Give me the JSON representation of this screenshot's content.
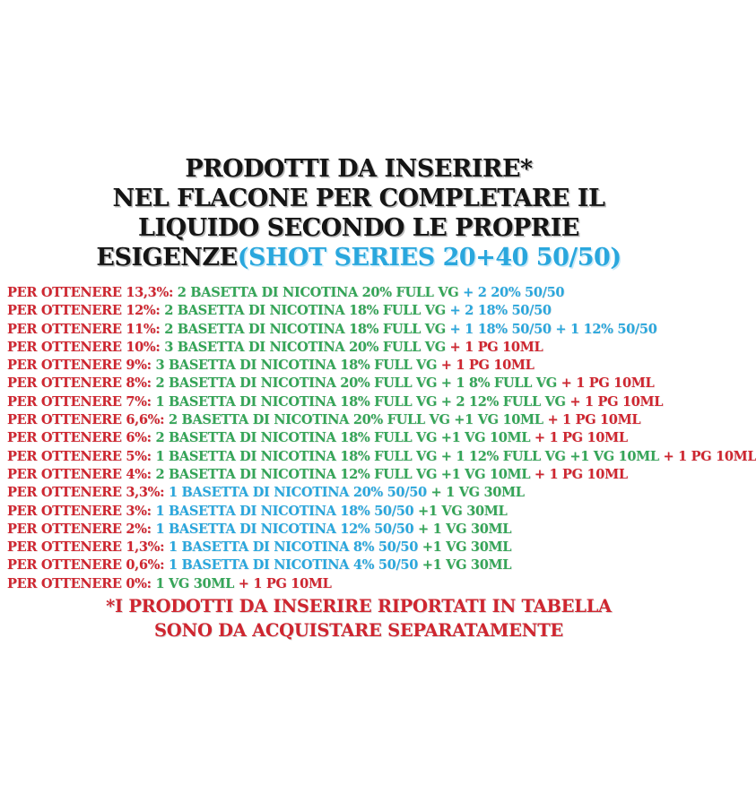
{
  "colors": {
    "red": "#cf2630",
    "green": "#35a558",
    "blue": "#2aa7dd",
    "black": "#151515"
  },
  "title": {
    "lines": [
      "PRODOTTI DA INSERIRE*",
      "NEL FLACONE PER COMPLETARE IL",
      "LIQUIDO SECONDO LE PROPRIE"
    ],
    "line4_black": "ESIGENZE",
    "line4_blue": "(SHOT SERIES 20+40 50/50)"
  },
  "list": {
    "rows": [
      {
        "segments": [
          {
            "text": "PER OTTENERE 13,3%: ",
            "color": "red"
          },
          {
            "text": "2 BASETTA DI NICOTINA 20% FULL VG",
            "color": "green"
          },
          {
            "text": " + 2 20% 50/50",
            "color": "blue"
          }
        ]
      },
      {
        "segments": [
          {
            "text": "PER OTTENERE 12%: ",
            "color": "red"
          },
          {
            "text": "2 BASETTA DI NICOTINA 18% FULL VG",
            "color": "green"
          },
          {
            "text": " + 2 18% 50/50",
            "color": "blue"
          }
        ]
      },
      {
        "segments": [
          {
            "text": "PER OTTENERE 11%: ",
            "color": "red"
          },
          {
            "text": "2 BASETTA DI NICOTINA 18% FULL VG",
            "color": "green"
          },
          {
            "text": " + 1 18% 50/50 + 1 12% 50/50",
            "color": "blue"
          }
        ]
      },
      {
        "segments": [
          {
            "text": "PER OTTENERE 10%: ",
            "color": "red"
          },
          {
            "text": "3 BASETTA DI NICOTINA 20% FULL VG",
            "color": "green"
          },
          {
            "text": " + 1 PG 10ML",
            "color": "red"
          }
        ]
      },
      {
        "segments": [
          {
            "text": "PER OTTENERE 9%: ",
            "color": "red"
          },
          {
            "text": "3 BASETTA DI NICOTINA 18% FULL VG",
            "color": "green"
          },
          {
            "text": " + 1 PG 10ML",
            "color": "red"
          }
        ]
      },
      {
        "segments": [
          {
            "text": "PER OTTENERE 8%: ",
            "color": "red"
          },
          {
            "text": "2 BASETTA DI NICOTINA 20% FULL VG + 1 8% FULL VG",
            "color": "green"
          },
          {
            "text": " + 1 PG 10ML",
            "color": "red"
          }
        ]
      },
      {
        "segments": [
          {
            "text": "PER OTTENERE 7%: ",
            "color": "red"
          },
          {
            "text": "1 BASETTA DI NICOTINA 18% FULL VG + 2 12% FULL VG",
            "color": "green"
          },
          {
            "text": " + 1 PG 10ML",
            "color": "red"
          }
        ]
      },
      {
        "segments": [
          {
            "text": "PER OTTENERE 6,6%: ",
            "color": "red"
          },
          {
            "text": "2 BASETTA DI NICOTINA 20% FULL VG +1 VG 10ML",
            "color": "green"
          },
          {
            "text": " + 1 PG 10ML",
            "color": "red"
          }
        ]
      },
      {
        "segments": [
          {
            "text": "PER OTTENERE 6%: ",
            "color": "red"
          },
          {
            "text": "2 BASETTA DI NICOTINA 18% FULL VG +1 VG 10ML",
            "color": "green"
          },
          {
            "text": " + 1 PG 10ML",
            "color": "red"
          }
        ]
      },
      {
        "segments": [
          {
            "text": "PER OTTENERE 5%: ",
            "color": "red"
          },
          {
            "text": "1 BASETTA DI NICOTINA 18% FULL VG + 1 12% FULL VG +1 VG 10ML",
            "color": "green"
          },
          {
            "text": " + 1 PG 10ML",
            "color": "red"
          }
        ]
      },
      {
        "segments": [
          {
            "text": "PER OTTENERE 4%: ",
            "color": "red"
          },
          {
            "text": "2 BASETTA DI NICOTINA 12% FULL VG +1 VG 10ML",
            "color": "green"
          },
          {
            "text": " + 1 PG 10ML",
            "color": "red"
          }
        ]
      },
      {
        "segments": [
          {
            "text": "PER OTTENERE 3,3%: ",
            "color": "red"
          },
          {
            "text": "1 BASETTA DI NICOTINA 20% 50/50",
            "color": "blue"
          },
          {
            "text": " + 1 VG 30ML",
            "color": "green"
          }
        ]
      },
      {
        "segments": [
          {
            "text": "PER OTTENERE 3%: ",
            "color": "red"
          },
          {
            "text": "1 BASETTA DI NICOTINA 18% 50/50",
            "color": "blue"
          },
          {
            "text": " +1 VG 30ML",
            "color": "green"
          }
        ]
      },
      {
        "segments": [
          {
            "text": "PER OTTENERE 2%: ",
            "color": "red"
          },
          {
            "text": "1 BASETTA DI NICOTINA 12% 50/50",
            "color": "blue"
          },
          {
            "text": " + 1 VG 30ML",
            "color": "green"
          }
        ]
      },
      {
        "segments": [
          {
            "text": "PER OTTENERE 1,3%: ",
            "color": "red"
          },
          {
            "text": "1 BASETTA DI NICOTINA 8% 50/50",
            "color": "blue"
          },
          {
            "text": " +1 VG 30ML",
            "color": "green"
          }
        ]
      },
      {
        "segments": [
          {
            "text": "PER OTTENERE 0,6%: ",
            "color": "red"
          },
          {
            "text": "1 BASETTA DI NICOTINA 4% 50/50",
            "color": "blue"
          },
          {
            "text": " +1 VG 30ML",
            "color": "green"
          }
        ]
      },
      {
        "segments": [
          {
            "text": "PER OTTENERE 0%: ",
            "color": "red"
          },
          {
            "text": "1 VG 30ML",
            "color": "green"
          },
          {
            "text": " + 1 PG 10ML",
            "color": "red"
          }
        ]
      }
    ]
  },
  "footnote": {
    "lines": [
      "*I PRODOTTI DA INSERIRE RIPORTATI IN TABELLA",
      "SONO DA ACQUISTARE SEPARATAMENTE"
    ]
  }
}
